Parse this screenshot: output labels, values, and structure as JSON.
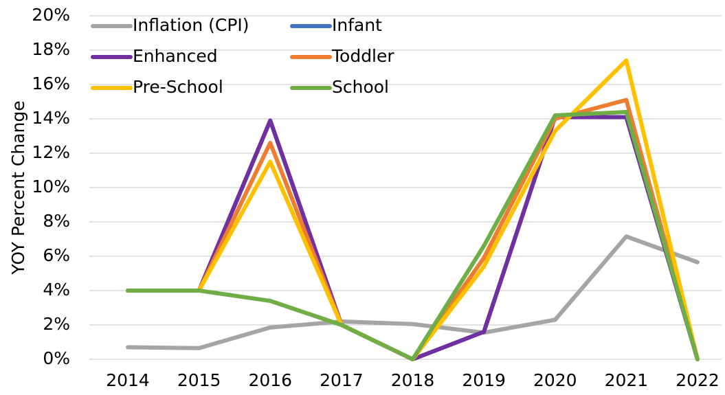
{
  "chart_data": {
    "type": "line",
    "y_label": "YOY Percent Change",
    "categories": [
      "2014",
      "2015",
      "2016",
      "2017",
      "2018",
      "2019",
      "2020",
      "2021",
      "2022"
    ],
    "series": [
      {
        "name": "Inflation (CPI)",
        "color": "#a5a5a5",
        "values": [
          0.7,
          0.65,
          1.85,
          2.2,
          2.05,
          1.55,
          2.3,
          7.15,
          5.65
        ]
      },
      {
        "name": "Infant",
        "color": "#4472c4",
        "values": [
          4,
          4,
          13.9,
          2,
          0,
          1.6,
          14.1,
          14.1,
          0
        ]
      },
      {
        "name": "Enhanced",
        "color": "#7030a0",
        "values": [
          4,
          4,
          13.9,
          2,
          0,
          1.6,
          14.1,
          14.1,
          0
        ]
      },
      {
        "name": "Toddler",
        "color": "#ed7d31",
        "values": [
          4,
          4,
          12.6,
          2,
          0,
          5.9,
          14.0,
          15.1,
          0
        ]
      },
      {
        "name": "Pre-School",
        "color": "#ffc000",
        "values": [
          4,
          4,
          11.5,
          2,
          0,
          5.4,
          13.3,
          17.4,
          0
        ]
      },
      {
        "name": "School",
        "color": "#70ad47",
        "values": [
          4,
          4,
          3.4,
          2,
          0,
          6.6,
          14.2,
          14.4,
          0
        ]
      }
    ],
    "ylim": [
      0,
      20
    ],
    "yticks": [
      {
        "value": 0,
        "label": "0%"
      },
      {
        "value": 2,
        "label": "2%"
      },
      {
        "value": 4,
        "label": "4%"
      },
      {
        "value": 6,
        "label": "6%"
      },
      {
        "value": 8,
        "label": "8%"
      },
      {
        "value": 10,
        "label": "10%"
      },
      {
        "value": 12,
        "label": "12%"
      },
      {
        "value": 14,
        "label": "14%"
      },
      {
        "value": 16,
        "label": "16%"
      },
      {
        "value": 18,
        "label": "18%"
      },
      {
        "value": 20,
        "label": "20%"
      }
    ],
    "grid": true,
    "legend": "upper left"
  }
}
